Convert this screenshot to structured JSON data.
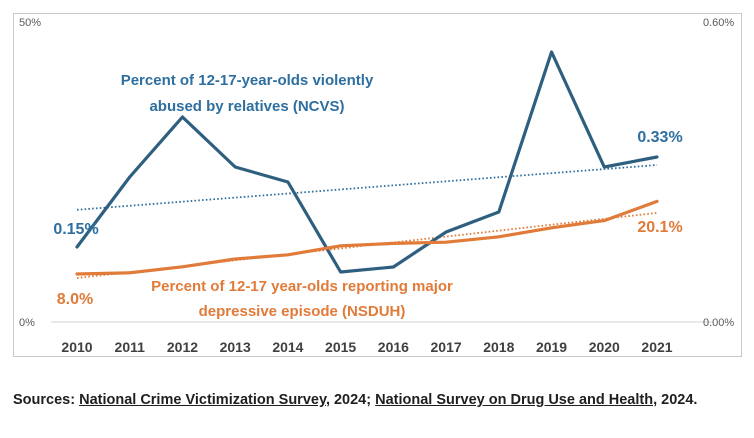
{
  "chart_data": {
    "type": "line",
    "categories": [
      "2010",
      "2011",
      "2012",
      "2013",
      "2014",
      "2015",
      "2016",
      "2017",
      "2018",
      "2019",
      "2020",
      "2021"
    ],
    "left_axis": {
      "ticks": [
        "0%",
        "50%"
      ],
      "ylim": [
        0,
        50
      ]
    },
    "right_axis": {
      "ticks": [
        "0.00%",
        "0.60%"
      ],
      "ylim": [
        0,
        0.6
      ]
    },
    "grid": false,
    "series": [
      {
        "id": "ncvs",
        "name": "Percent of 12-17-year-olds violently abused by relatives (NCVS)",
        "name_lines": [
          "Percent of 12-17-year-olds violently",
          "abused by relatives (NCVS)"
        ],
        "axis": "right",
        "color": "#2e5f7f",
        "values": [
          0.15,
          0.29,
          0.41,
          0.31,
          0.28,
          0.1,
          0.11,
          0.18,
          0.22,
          0.54,
          0.31,
          0.33
        ],
        "start_label": "0.15%",
        "end_label": "0.33%",
        "trendline": true,
        "trend_color": "#2e6fa0"
      },
      {
        "id": "nsduh",
        "name": "Percent of 12-17 year-olds reporting major depressive episode (NSDUH)",
        "name_lines": [
          "Percent of 12-17 year-olds reporting major",
          "depressive episode (NSDUH)"
        ],
        "axis": "left",
        "color": "#e07b39",
        "values": [
          8.0,
          8.2,
          9.2,
          10.5,
          11.2,
          12.7,
          13.1,
          13.3,
          14.2,
          15.7,
          16.9,
          20.1
        ],
        "start_label": "8.0%",
        "end_label": "20.1%",
        "trendline": true,
        "trend_color": "#e07b39"
      }
    ]
  },
  "sources": {
    "prefix": "Sources: ",
    "link1": "National Crime Victimization Survey",
    "mid": ", 2024; ",
    "link2": "National Survey on Drug Use and Health",
    "suffix": ", 2024."
  }
}
